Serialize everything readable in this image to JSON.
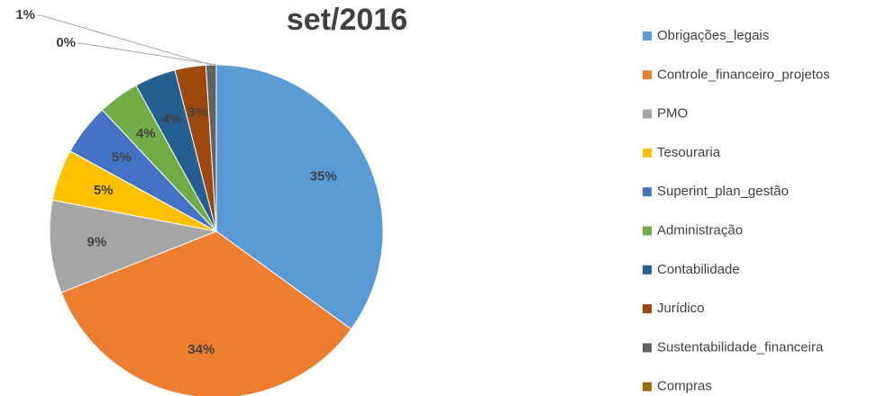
{
  "chart_data": {
    "type": "pie",
    "title": "set/2016",
    "categories": [
      "Obrigações_legais",
      "Controle_financeiro_projetos",
      "PMO",
      "Tesouraria",
      "Superint_plan_gestão",
      "Administração",
      "Contabilidade",
      "Jurídico",
      "Sustentabilidade_financeira",
      "Compras"
    ],
    "values": [
      35,
      34,
      9,
      5,
      5,
      4,
      4,
      3,
      1,
      0
    ],
    "value_labels": [
      "35%",
      "34%",
      "9%",
      "5%",
      "5%",
      "4%",
      "4%",
      "3%",
      "1%",
      "0%"
    ],
    "colors": [
      "#5b9bd5",
      "#ed7d31",
      "#a5a5a5",
      "#ffc000",
      "#4472c4",
      "#70ad47",
      "#255e91",
      "#9e480e",
      "#636363",
      "#997300"
    ],
    "legend": "right"
  }
}
